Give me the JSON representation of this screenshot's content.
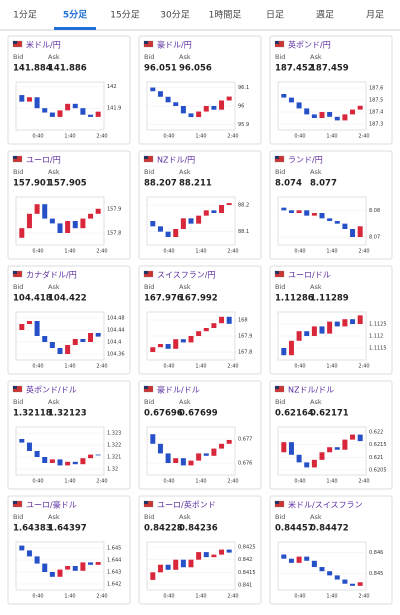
{
  "tabs": [
    "1分足",
    "5分足",
    "15分足",
    "30分足",
    "1時間足",
    "日足",
    "週足",
    "月足"
  ],
  "active_tab": 1,
  "labels": {
    "bid": "Bid",
    "ask": "Ask",
    "x": [
      "0:40",
      "1:40",
      "2:40"
    ]
  },
  "cards": [
    {
      "name": "米ドル/円",
      "bid": "141.884",
      "ask": "141.886",
      "ylim": [
        141.8,
        142.02
      ],
      "yticks": [
        142,
        141.9
      ],
      "closes": [
        141.96,
        141.93,
        141.95,
        141.9,
        141.88,
        141.86,
        141.89,
        141.92,
        141.9,
        141.87,
        141.86,
        141.884
      ]
    },
    {
      "name": "豪ドル/円",
      "bid": "96.051",
      "ask": "96.056",
      "ylim": [
        95.87,
        96.13
      ],
      "yticks": [
        96.1,
        96,
        95.9
      ],
      "closes": [
        96.1,
        96.08,
        96.05,
        96.02,
        96.0,
        95.96,
        95.94,
        95.97,
        96.0,
        95.98,
        96.03,
        96.051
      ]
    },
    {
      "name": "英ポンド/円",
      "bid": "187.452",
      "ask": "187.459",
      "ylim": [
        187.25,
        187.65
      ],
      "yticks": [
        187.6,
        187.5,
        187.4,
        187.3
      ],
      "closes": [
        187.55,
        187.52,
        187.48,
        187.43,
        187.38,
        187.35,
        187.4,
        187.36,
        187.33,
        187.38,
        187.42,
        187.452
      ]
    },
    {
      "name": "ユーロ/円",
      "bid": "157.901",
      "ask": "157.905",
      "ylim": [
        157.75,
        157.95
      ],
      "yticks": [
        157.9,
        157.8
      ],
      "closes": [
        157.78,
        157.82,
        157.88,
        157.92,
        157.86,
        157.84,
        157.8,
        157.85,
        157.82,
        157.86,
        157.88,
        157.901
      ]
    },
    {
      "name": "NZドル/円",
      "bid": "88.207",
      "ask": "88.211",
      "ylim": [
        88.05,
        88.23
      ],
      "yticks": [
        88.2,
        88.1
      ],
      "closes": [
        88.14,
        88.12,
        88.1,
        88.08,
        88.11,
        88.15,
        88.13,
        88.16,
        88.18,
        88.17,
        88.2,
        88.207
      ]
    },
    {
      "name": "ランド/円",
      "bid": "8.074",
      "ask": "8.077",
      "ylim": [
        8.067,
        8.085
      ],
      "yticks": [
        8.08,
        8.07
      ],
      "closes": [
        8.081,
        8.08,
        8.079,
        8.08,
        8.078,
        8.079,
        8.077,
        8.076,
        8.075,
        8.073,
        8.07,
        8.074
      ]
    },
    {
      "name": "カナダドル/円",
      "bid": "104.418",
      "ask": "104.422",
      "ylim": [
        104.34,
        104.5
      ],
      "yticks": [
        104.48,
        104.44,
        104.4,
        104.36
      ],
      "closes": [
        104.44,
        104.46,
        104.47,
        104.42,
        104.4,
        104.38,
        104.36,
        104.39,
        104.41,
        104.4,
        104.43,
        104.418
      ]
    },
    {
      "name": "スイスフラン/円",
      "bid": "167.976",
      "ask": "167.992",
      "ylim": [
        167.75,
        168.05
      ],
      "yticks": [
        168,
        167.9,
        167.8
      ],
      "closes": [
        167.8,
        167.83,
        167.85,
        167.82,
        167.88,
        167.86,
        167.9,
        167.93,
        167.95,
        167.98,
        168.02,
        167.976
      ]
    },
    {
      "name": "ユーロ/ドル",
      "bid": "1.11286",
      "ask": "1.11289",
      "ylim": [
        1.111,
        1.113
      ],
      "yticks": [
        1.1125,
        1.112,
        1.1115
      ],
      "closes": [
        1.1115,
        1.1112,
        1.1118,
        1.1122,
        1.112,
        1.1124,
        1.1121,
        1.1126,
        1.1124,
        1.1127,
        1.1125,
        1.11286
      ]
    },
    {
      "name": "英ポンド/ドル",
      "bid": "1.32118",
      "ask": "1.32123",
      "ylim": [
        1.3195,
        1.3235
      ],
      "yticks": [
        1.323,
        1.322,
        1.321,
        1.32
      ],
      "closes": [
        1.3225,
        1.3222,
        1.3215,
        1.321,
        1.3205,
        1.3208,
        1.3203,
        1.3206,
        1.3204,
        1.3209,
        1.3212,
        1.32118
      ]
    },
    {
      "name": "豪ドル/ドル",
      "bid": "0.67696",
      "ask": "0.67699",
      "ylim": [
        0.6755,
        0.6775
      ],
      "yticks": [
        0.677,
        0.676
      ],
      "closes": [
        0.6772,
        0.6768,
        0.6764,
        0.676,
        0.6762,
        0.6759,
        0.6761,
        0.6764,
        0.6763,
        0.6766,
        0.6768,
        0.67696
      ]
    },
    {
      "name": "NZドル/ドル",
      "bid": "0.62164",
      "ask": "0.62171",
      "ylim": [
        0.6203,
        0.6222
      ],
      "yticks": [
        0.622,
        0.6215,
        0.621,
        0.6205
      ],
      "closes": [
        0.6212,
        0.6216,
        0.6211,
        0.6208,
        0.6206,
        0.6209,
        0.6212,
        0.6214,
        0.6213,
        0.6217,
        0.6219,
        0.62164
      ]
    },
    {
      "name": "ユーロ/豪ドル",
      "bid": "1.64383",
      "ask": "1.64397",
      "ylim": [
        1.6415,
        1.6455
      ],
      "yticks": [
        1.645,
        1.644,
        1.643,
        1.642
      ],
      "closes": [
        1.6452,
        1.6448,
        1.6443,
        1.6437,
        1.643,
        1.6426,
        1.6432,
        1.6435,
        1.6431,
        1.6438,
        1.6436,
        1.64383
      ]
    },
    {
      "name": "ユーロ/英ポンド",
      "bid": "0.84228",
      "ask": "0.84236",
      "ylim": [
        0.8408,
        0.8427
      ],
      "yticks": [
        0.8425,
        0.842,
        0.8415,
        0.841
      ],
      "closes": [
        0.8412,
        0.8415,
        0.8418,
        0.8416,
        0.842,
        0.8417,
        0.842,
        0.8423,
        0.8421,
        0.8422,
        0.8424,
        0.84228
      ]
    },
    {
      "name": "米ドル/スイスフラン",
      "bid": "0.84457",
      "ask": "0.84472",
      "ylim": [
        0.8442,
        0.8465
      ],
      "yticks": [
        0.846,
        0.845
      ],
      "closes": [
        0.8459,
        0.8457,
        0.8455,
        0.8458,
        0.8456,
        0.8453,
        0.8451,
        0.8449,
        0.8447,
        0.8445,
        0.8444,
        0.84457
      ]
    }
  ]
}
